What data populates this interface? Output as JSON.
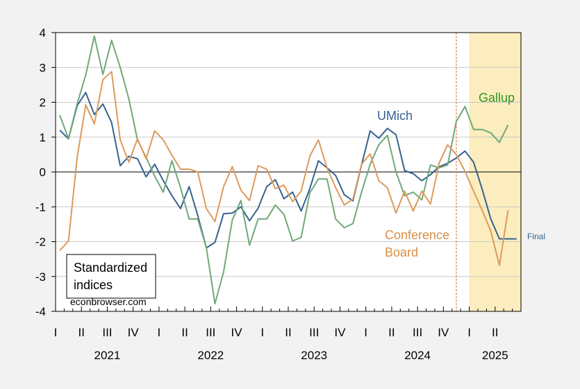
{
  "chart_data": {
    "type": "line",
    "watermark": "econbrowser.com",
    "legend_box": {
      "line1": "Standardized",
      "line2": "indices",
      "placement": "bottom-left"
    },
    "ylim": [
      -4,
      4
    ],
    "yticks": [
      4,
      3,
      2,
      1,
      0,
      -1,
      -2,
      -3,
      -4
    ],
    "x_start": "2021-01",
    "x_end": "2025-06",
    "quarter_ticks": [
      "I",
      "II",
      "III",
      "IV",
      "I",
      "II",
      "III",
      "IV",
      "I",
      "II",
      "III",
      "IV",
      "I",
      "II",
      "III",
      "IV",
      "I",
      "II"
    ],
    "years": [
      "2021",
      "2022",
      "2023",
      "2024",
      "2025"
    ],
    "grid": "horizontal",
    "zero_line": true,
    "vertical_marker": "2024-11",
    "shaded_region": {
      "start": "2025-01",
      "end": "2025-06",
      "color": "#fbedbe"
    },
    "annotations": {
      "umich": "UMich",
      "gallup": "Gallup",
      "conference_line1": "Conference",
      "conference_line2": "Board",
      "final": "Final"
    },
    "colors": {
      "umich": "#35628f",
      "gallup": "#6fa877",
      "conference": "#dd9a5c",
      "gallup_label": "#2d9a24",
      "marker": "#d9691c"
    },
    "series": [
      {
        "id": "umich",
        "start": "2021-01",
        "values": [
          1.2,
          0.95,
          1.9,
          2.28,
          1.65,
          1.95,
          1.42,
          0.18,
          0.45,
          0.38,
          -0.14,
          0.22,
          -0.25,
          -0.68,
          -1.05,
          -0.42,
          -1.25,
          -2.18,
          -2.02,
          -1.2,
          -1.18,
          -1.0,
          -1.4,
          -1.04,
          -0.42,
          -0.22,
          -0.77,
          -0.58,
          -1.12,
          -0.48,
          0.32,
          0.12,
          -0.1,
          -0.65,
          -0.83,
          0.2,
          1.18,
          0.97,
          1.25,
          1.07,
          0.04,
          -0.05,
          -0.25,
          -0.08,
          0.15,
          0.25,
          0.4,
          0.6,
          0.28,
          -0.5,
          -1.35,
          -1.92,
          -1.92,
          -1.92
        ]
      },
      {
        "id": "gallup",
        "start": "2021-01",
        "values": [
          1.63,
          0.95,
          1.95,
          2.78,
          3.9,
          2.8,
          3.78,
          3.0,
          2.1,
          0.92,
          0.42,
          -0.12,
          -0.58,
          0.32,
          -0.45,
          -1.35,
          -1.35,
          -2.18,
          -3.78,
          -2.87,
          -1.38,
          -0.82,
          -2.1,
          -1.35,
          -1.35,
          -0.95,
          -1.22,
          -1.98,
          -1.88,
          -0.6,
          -0.2,
          -0.2,
          -1.35,
          -1.6,
          -1.48,
          -0.58,
          0.22,
          0.78,
          1.05,
          0.0,
          -0.68,
          -0.58,
          -0.8,
          0.2,
          0.12,
          0.2,
          1.45,
          1.88,
          1.22,
          1.22,
          1.12,
          0.85,
          1.35
        ]
      },
      {
        "id": "conference",
        "start": "2021-01",
        "values": [
          -2.25,
          -1.98,
          0.4,
          1.93,
          1.38,
          2.65,
          2.88,
          0.92,
          0.28,
          0.95,
          0.38,
          1.18,
          0.92,
          0.48,
          0.08,
          0.08,
          0.0,
          -1.05,
          -1.42,
          -0.42,
          0.15,
          -0.52,
          -0.82,
          0.18,
          0.08,
          -0.48,
          -0.38,
          -0.85,
          -0.55,
          0.45,
          0.92,
          0.12,
          -0.45,
          -0.95,
          -0.78,
          0.22,
          0.52,
          -0.25,
          -0.45,
          -1.18,
          -0.55,
          -1.12,
          -0.55,
          -0.92,
          0.25,
          0.78,
          0.5,
          0.02,
          -0.55,
          -1.1,
          -1.7,
          -2.68,
          -1.1
        ]
      }
    ]
  }
}
